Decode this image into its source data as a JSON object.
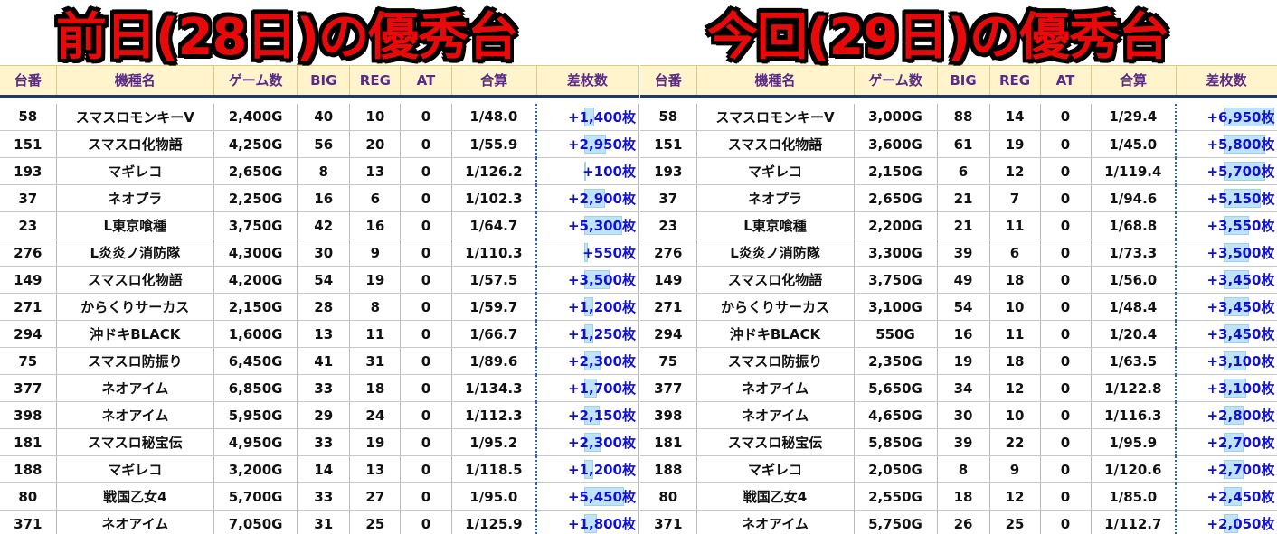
{
  "headers": [
    "台番",
    "機種名",
    "ゲーム数",
    "BIG",
    "REG",
    "AT",
    "合算",
    "差枚数"
  ],
  "left": {
    "title": "前日(28日)の優秀台",
    "rows": [
      {
        "no": "58",
        "name": "スマスロモンキーV",
        "games": "2,400G",
        "big": "40",
        "reg": "10",
        "at": "0",
        "total": "1/48.0",
        "diff": "+1,400枚",
        "diff_value": 1400
      },
      {
        "no": "151",
        "name": "スマスロ化物語",
        "games": "4,250G",
        "big": "56",
        "reg": "20",
        "at": "0",
        "total": "1/55.9",
        "diff": "+2,950枚",
        "diff_value": 2950
      },
      {
        "no": "193",
        "name": "マギレコ",
        "games": "2,650G",
        "big": "8",
        "reg": "13",
        "at": "0",
        "total": "1/126.2",
        "diff": "+100枚",
        "diff_value": 100
      },
      {
        "no": "37",
        "name": "ネオプラ",
        "games": "2,250G",
        "big": "16",
        "reg": "6",
        "at": "0",
        "total": "1/102.3",
        "diff": "+2,900枚",
        "diff_value": 2900
      },
      {
        "no": "23",
        "name": "L東京喰種",
        "games": "3,750G",
        "big": "42",
        "reg": "16",
        "at": "0",
        "total": "1/64.7",
        "diff": "+5,300枚",
        "diff_value": 5300
      },
      {
        "no": "276",
        "name": "L炎炎ノ消防隊",
        "games": "4,300G",
        "big": "30",
        "reg": "9",
        "at": "0",
        "total": "1/110.3",
        "diff": "+550枚",
        "diff_value": 550
      },
      {
        "no": "149",
        "name": "スマスロ化物語",
        "games": "4,200G",
        "big": "54",
        "reg": "19",
        "at": "0",
        "total": "1/57.5",
        "diff": "+3,500枚",
        "diff_value": 3500
      },
      {
        "no": "271",
        "name": "からくりサーカス",
        "games": "2,150G",
        "big": "28",
        "reg": "8",
        "at": "0",
        "total": "1/59.7",
        "diff": "+1,200枚",
        "diff_value": 1200
      },
      {
        "no": "294",
        "name": "沖ドキBLACK",
        "games": "1,600G",
        "big": "13",
        "reg": "11",
        "at": "0",
        "total": "1/66.7",
        "diff": "+1,250枚",
        "diff_value": 1250
      },
      {
        "no": "75",
        "name": "スマスロ防振り",
        "games": "6,450G",
        "big": "41",
        "reg": "31",
        "at": "0",
        "total": "1/89.6",
        "diff": "+2,300枚",
        "diff_value": 2300
      },
      {
        "no": "377",
        "name": "ネオアイム",
        "games": "6,850G",
        "big": "33",
        "reg": "18",
        "at": "0",
        "total": "1/134.3",
        "diff": "+1,700枚",
        "diff_value": 1700
      },
      {
        "no": "398",
        "name": "ネオアイム",
        "games": "5,950G",
        "big": "29",
        "reg": "24",
        "at": "0",
        "total": "1/112.3",
        "diff": "+2,150枚",
        "diff_value": 2150
      },
      {
        "no": "181",
        "name": "スマスロ秘宝伝",
        "games": "4,950G",
        "big": "33",
        "reg": "19",
        "at": "0",
        "total": "1/95.2",
        "diff": "+2,300枚",
        "diff_value": 2300
      },
      {
        "no": "188",
        "name": "マギレコ",
        "games": "3,200G",
        "big": "14",
        "reg": "13",
        "at": "0",
        "total": "1/118.5",
        "diff": "+1,200枚",
        "diff_value": 1200
      },
      {
        "no": "80",
        "name": "戦国乙女4",
        "games": "5,700G",
        "big": "33",
        "reg": "27",
        "at": "0",
        "total": "1/95.0",
        "diff": "+5,450枚",
        "diff_value": 5450
      },
      {
        "no": "371",
        "name": "ネオアイム",
        "games": "7,050G",
        "big": "31",
        "reg": "25",
        "at": "0",
        "total": "1/125.9",
        "diff": "+1,800枚",
        "diff_value": 1800
      }
    ]
  },
  "right": {
    "title": "今回(29日)の優秀台",
    "rows": [
      {
        "no": "58",
        "name": "スマスロモンキーV",
        "games": "3,000G",
        "big": "88",
        "reg": "14",
        "at": "0",
        "total": "1/29.4",
        "diff": "+6,950枚",
        "diff_value": 6950
      },
      {
        "no": "151",
        "name": "スマスロ化物語",
        "games": "3,600G",
        "big": "61",
        "reg": "19",
        "at": "0",
        "total": "1/45.0",
        "diff": "+5,800枚",
        "diff_value": 5800
      },
      {
        "no": "193",
        "name": "マギレコ",
        "games": "2,150G",
        "big": "6",
        "reg": "12",
        "at": "0",
        "total": "1/119.4",
        "diff": "+5,700枚",
        "diff_value": 5700
      },
      {
        "no": "37",
        "name": "ネオプラ",
        "games": "2,650G",
        "big": "21",
        "reg": "7",
        "at": "0",
        "total": "1/94.6",
        "diff": "+5,150枚",
        "diff_value": 5150
      },
      {
        "no": "23",
        "name": "L東京喰種",
        "games": "2,200G",
        "big": "21",
        "reg": "11",
        "at": "0",
        "total": "1/68.8",
        "diff": "+3,550枚",
        "diff_value": 3550
      },
      {
        "no": "276",
        "name": "L炎炎ノ消防隊",
        "games": "3,300G",
        "big": "39",
        "reg": "6",
        "at": "0",
        "total": "1/73.3",
        "diff": "+3,500枚",
        "diff_value": 3500
      },
      {
        "no": "149",
        "name": "スマスロ化物語",
        "games": "3,750G",
        "big": "49",
        "reg": "18",
        "at": "0",
        "total": "1/56.0",
        "diff": "+3,450枚",
        "diff_value": 3450
      },
      {
        "no": "271",
        "name": "からくりサーカス",
        "games": "3,100G",
        "big": "54",
        "reg": "10",
        "at": "0",
        "total": "1/48.4",
        "diff": "+3,450枚",
        "diff_value": 3450
      },
      {
        "no": "294",
        "name": "沖ドキBLACK",
        "games": "550G",
        "big": "16",
        "reg": "11",
        "at": "0",
        "total": "1/20.4",
        "diff": "+3,450枚",
        "diff_value": 3450
      },
      {
        "no": "75",
        "name": "スマスロ防振り",
        "games": "2,350G",
        "big": "19",
        "reg": "18",
        "at": "0",
        "total": "1/63.5",
        "diff": "+3,100枚",
        "diff_value": 3100
      },
      {
        "no": "377",
        "name": "ネオアイム",
        "games": "5,650G",
        "big": "34",
        "reg": "12",
        "at": "0",
        "total": "1/122.8",
        "diff": "+3,100枚",
        "diff_value": 3100
      },
      {
        "no": "398",
        "name": "ネオアイム",
        "games": "4,650G",
        "big": "30",
        "reg": "10",
        "at": "0",
        "total": "1/116.3",
        "diff": "+2,800枚",
        "diff_value": 2800
      },
      {
        "no": "181",
        "name": "スマスロ秘宝伝",
        "games": "5,850G",
        "big": "39",
        "reg": "22",
        "at": "0",
        "total": "1/95.9",
        "diff": "+2,700枚",
        "diff_value": 2700
      },
      {
        "no": "188",
        "name": "マギレコ",
        "games": "2,050G",
        "big": "8",
        "reg": "9",
        "at": "0",
        "total": "1/120.6",
        "diff": "+2,700枚",
        "diff_value": 2700
      },
      {
        "no": "80",
        "name": "戦国乙女4",
        "games": "2,550G",
        "big": "18",
        "reg": "12",
        "at": "0",
        "total": "1/85.0",
        "diff": "+2,450枚",
        "diff_value": 2450
      },
      {
        "no": "371",
        "name": "ネオアイム",
        "games": "5,750G",
        "big": "26",
        "reg": "25",
        "at": "0",
        "total": "1/112.7",
        "diff": "+2,050枚",
        "diff_value": 2050
      }
    ]
  },
  "colors": {
    "title_red": "#e80a0a",
    "header_bg": "#fff4cc",
    "header_text": "#5a2a86",
    "diff_text": "#1010d0",
    "databar": "#bfe3f8"
  }
}
